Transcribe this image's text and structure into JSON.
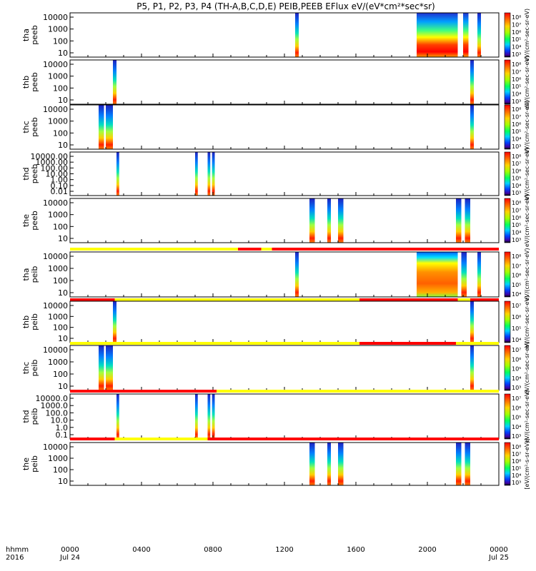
{
  "chart_data": {
    "type": "heatmap",
    "title": "P5, P1, P2, P3, P4 (TH-A,B,C,D,E) PEIB,PEEB EFlux eV/(eV*cm²*sec*sr)",
    "x_ticks": [
      "0000",
      "0400",
      "0800",
      "1200",
      "1600",
      "2000",
      "0000"
    ],
    "x_date_labels": [
      "Jul 24",
      "Jul 25"
    ],
    "x_left_labels": [
      "hhmm",
      "2016"
    ],
    "xlim_hours": [
      0,
      24
    ],
    "colormap": "rainbow",
    "panels": [
      {
        "id": "tha-peeb",
        "label": [
          "tha",
          "peeb"
        ],
        "yticks": [
          "10000",
          "1000",
          "100",
          "10"
        ],
        "cbar_ticks": [
          "10⁸",
          "10⁷",
          "10⁶",
          "10⁵",
          "10⁴",
          "10³"
        ],
        "bursts": [
          {
            "start": 12.6,
            "end": 12.8,
            "kind": "v"
          },
          {
            "start": 19.4,
            "end": 21.7,
            "kind": "blockA"
          },
          {
            "start": 22.0,
            "end": 22.3,
            "kind": "blockA"
          },
          {
            "start": 22.8,
            "end": 23.0,
            "kind": "v"
          }
        ]
      },
      {
        "id": "thb-peeb",
        "label": [
          "thb",
          "peeb"
        ],
        "yticks": [
          "10000",
          "1000",
          "100",
          "10"
        ],
        "cbar_ticks": [
          "10⁸",
          "10⁷",
          "10⁶",
          "10⁵",
          "10⁴",
          "10³"
        ],
        "bursts": [
          {
            "start": 2.4,
            "end": 2.6,
            "kind": "v"
          },
          {
            "start": 22.4,
            "end": 22.6,
            "kind": "v"
          }
        ]
      },
      {
        "id": "thc-peeb",
        "label": [
          "thc",
          "peeb"
        ],
        "yticks": [
          "10000",
          "1000",
          "100",
          "10"
        ],
        "cbar_ticks": [
          "10⁸",
          "10⁷",
          "10⁶",
          "10⁵",
          "10⁴",
          "10³"
        ],
        "bursts": [
          {
            "start": 1.6,
            "end": 1.9,
            "kind": "v"
          },
          {
            "start": 2.0,
            "end": 2.4,
            "kind": "v"
          },
          {
            "start": 22.4,
            "end": 22.6,
            "kind": "v"
          }
        ]
      },
      {
        "id": "thd-peeb",
        "label": [
          "thd",
          "peeb"
        ],
        "yticks": [
          "10000.00",
          "1000.00",
          "100.00",
          "10.00",
          "1.00",
          "0.10",
          "0.01"
        ],
        "cbar_ticks": [
          "10⁸",
          "10⁷",
          "10⁶",
          "10⁵",
          "10⁴",
          "10³"
        ],
        "bursts": [
          {
            "start": 2.6,
            "end": 2.75,
            "kind": "v"
          },
          {
            "start": 7.0,
            "end": 7.15,
            "kind": "v"
          },
          {
            "start": 7.7,
            "end": 7.85,
            "kind": "v"
          },
          {
            "start": 7.95,
            "end": 8.1,
            "kind": "v"
          }
        ]
      },
      {
        "id": "the-peeb",
        "label": [
          "the",
          "peeb"
        ],
        "yticks": [
          "10000",
          "1000",
          "100",
          "10"
        ],
        "cbar_ticks": [
          "10⁸",
          "10⁷",
          "10⁶",
          "10⁵",
          "10⁴",
          "10³"
        ],
        "bursts": [
          {
            "start": 13.4,
            "end": 13.7,
            "kind": "v"
          },
          {
            "start": 14.4,
            "end": 14.6,
            "kind": "v"
          },
          {
            "start": 15.0,
            "end": 15.3,
            "kind": "v"
          },
          {
            "start": 21.6,
            "end": 21.9,
            "kind": "v"
          },
          {
            "start": 22.1,
            "end": 22.4,
            "kind": "v"
          }
        ],
        "bar": [
          {
            "start": 0,
            "end": 9.4,
            "color": "#ffff00"
          },
          {
            "start": 9.4,
            "end": 10.7,
            "color": "#ff0000"
          },
          {
            "start": 10.7,
            "end": 11.3,
            "color": "#ffff00"
          },
          {
            "start": 11.3,
            "end": 11.6,
            "color": "#ff0000"
          },
          {
            "start": 11.6,
            "end": 24,
            "color": "#ff0000"
          }
        ]
      },
      {
        "id": "tha-peib",
        "label": [
          "tha",
          "peib"
        ],
        "yticks": [
          "10000",
          "1000",
          "100",
          "10"
        ],
        "cbar_ticks": [
          "10⁸",
          "10⁷",
          "10⁶",
          "10⁵",
          "10⁴"
        ],
        "bursts": [
          {
            "start": 12.6,
            "end": 12.8,
            "kind": "v"
          },
          {
            "start": 19.4,
            "end": 21.7,
            "kind": "blockB"
          },
          {
            "start": 21.9,
            "end": 22.2,
            "kind": "v"
          },
          {
            "start": 22.8,
            "end": 23.0,
            "kind": "v"
          }
        ],
        "bar": [
          {
            "start": 0,
            "end": 2.5,
            "color": "#ff0000"
          },
          {
            "start": 2.5,
            "end": 16.2,
            "color": "#ffff00"
          },
          {
            "start": 16.2,
            "end": 21.7,
            "color": "#ff0000"
          },
          {
            "start": 21.7,
            "end": 22.4,
            "color": "#ffff00"
          },
          {
            "start": 22.4,
            "end": 24,
            "color": "#ff0000"
          }
        ]
      },
      {
        "id": "thb-peib",
        "label": [
          "thb",
          "peib"
        ],
        "yticks": [
          "10000",
          "1000",
          "100",
          "10"
        ],
        "cbar_ticks": [
          "10⁷",
          "10⁶",
          "10⁵",
          "10⁴"
        ],
        "bursts": [
          {
            "start": 2.4,
            "end": 2.6,
            "kind": "v"
          },
          {
            "start": 22.4,
            "end": 22.6,
            "kind": "v"
          }
        ],
        "bar": [
          {
            "start": 0,
            "end": 16.2,
            "color": "#ffff00"
          },
          {
            "start": 16.2,
            "end": 21.6,
            "color": "#ff0000"
          },
          {
            "start": 21.6,
            "end": 24,
            "color": "#ffff00"
          }
        ]
      },
      {
        "id": "thc-peib",
        "label": [
          "thc",
          "peib"
        ],
        "yticks": [
          "10000",
          "1000",
          "100",
          "10"
        ],
        "cbar_ticks": [
          "10⁷",
          "10⁶",
          "10⁵",
          "10⁴",
          "10³"
        ],
        "bursts": [
          {
            "start": 1.6,
            "end": 1.9,
            "kind": "v"
          },
          {
            "start": 2.0,
            "end": 2.4,
            "kind": "v"
          },
          {
            "start": 22.4,
            "end": 22.6,
            "kind": "v"
          }
        ],
        "bar": [
          {
            "start": 0,
            "end": 8.2,
            "color": "#ff0000"
          },
          {
            "start": 8.2,
            "end": 24,
            "color": "#ffff00"
          }
        ]
      },
      {
        "id": "thd-peib",
        "label": [
          "thd",
          "peib"
        ],
        "yticks": [
          "10000.0",
          "1000.0",
          "100.0",
          "10.0",
          "1.0",
          "0.1"
        ],
        "cbar_ticks": [
          "10⁷",
          "10⁶",
          "10⁵",
          "10⁴",
          "10³"
        ],
        "bursts": [
          {
            "start": 2.6,
            "end": 2.75,
            "kind": "v"
          },
          {
            "start": 7.0,
            "end": 7.15,
            "kind": "v"
          },
          {
            "start": 7.7,
            "end": 7.85,
            "kind": "v"
          },
          {
            "start": 7.95,
            "end": 8.1,
            "kind": "v"
          }
        ],
        "bar": [
          {
            "start": 0,
            "end": 2.5,
            "color": "#ff0000"
          },
          {
            "start": 2.5,
            "end": 7.7,
            "color": "#ffff00"
          },
          {
            "start": 7.7,
            "end": 24,
            "color": "#ff0000"
          }
        ]
      },
      {
        "id": "the-peib",
        "label": [
          "the",
          "peib"
        ],
        "yticks": [
          "10000",
          "1000",
          "100",
          "10"
        ],
        "cbar_ticks": [
          "10⁸",
          "10⁷",
          "10⁶",
          "10⁵",
          "10⁴",
          "10³"
        ],
        "bursts": [
          {
            "start": 13.4,
            "end": 13.7,
            "kind": "v"
          },
          {
            "start": 14.4,
            "end": 14.6,
            "kind": "v"
          },
          {
            "start": 15.0,
            "end": 15.3,
            "kind": "v"
          },
          {
            "start": 21.6,
            "end": 21.9,
            "kind": "v"
          },
          {
            "start": 22.1,
            "end": 22.4,
            "kind": "v"
          }
        ]
      }
    ],
    "cbar_unit_labels": [
      "eV/(cm²-sec-sr-eV)",
      "eV/(cm²-sec-sr-eV)",
      "eV/(cm²-sec-sr-eV)",
      "eV/(cm²-sec-sr-eV)",
      "eV/(cm²-sec-sr-eV)",
      "eV/(cm²-sec-sr-eV)",
      "eV/(cm²-sec-sr-eV)",
      "eV/(cm²-sec-sr-eV)",
      "eV/(cm²-sec-sr-eV)",
      "[eV/(cm²-s-sr-eV)]"
    ]
  }
}
